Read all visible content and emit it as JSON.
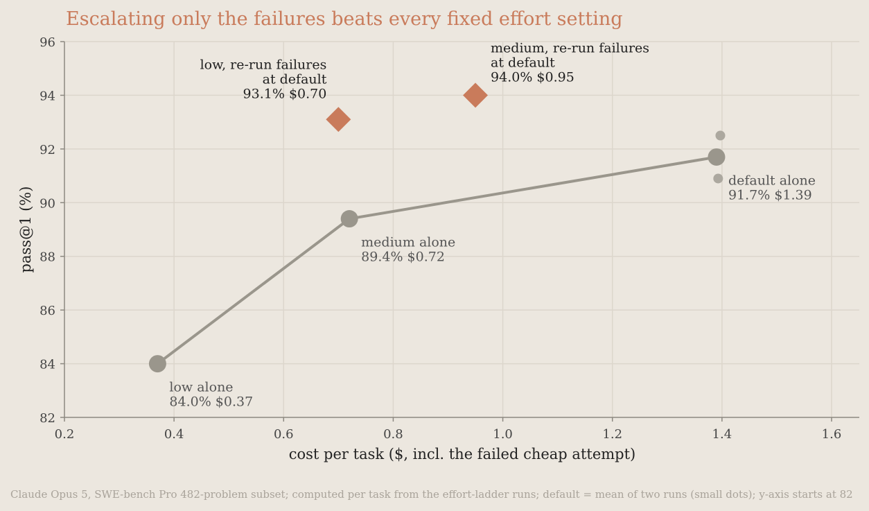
{
  "chart_data": {
    "type": "scatter",
    "title": "Escalating only the failures beats every fixed effort setting",
    "xlabel": "cost per task ($, incl. the failed cheap attempt)",
    "ylabel": "pass@1 (%)",
    "xlim": [
      0.2,
      1.65
    ],
    "ylim": [
      82,
      96
    ],
    "xticks": [
      "0.2",
      "0.4",
      "0.6",
      "0.8",
      "1.0",
      "1.2",
      "1.4",
      "1.6"
    ],
    "yticks": [
      "82",
      "84",
      "86",
      "88",
      "90",
      "92",
      "94",
      "96"
    ],
    "grid": true,
    "colors": {
      "fixed": "#9a968c",
      "escalate": "#c97b5b",
      "title": "#c97b5b"
    },
    "fixed_effort": [
      {
        "x": 0.37,
        "y": 84.0,
        "label_lines": [
          "low alone",
          "84.0%  $0.37"
        ]
      },
      {
        "x": 0.72,
        "y": 89.4,
        "label_lines": [
          "medium alone",
          "89.4%  $0.72"
        ]
      },
      {
        "x": 1.39,
        "y": 91.7,
        "label_lines": [
          "default alone",
          "91.7%  $1.39"
        ]
      }
    ],
    "default_runs": [
      {
        "x": 1.397,
        "y": 92.5
      },
      {
        "x": 1.393,
        "y": 90.9
      }
    ],
    "escalation": [
      {
        "x": 0.7,
        "y": 93.1,
        "label_lines": [
          "low, re-run failures",
          "at default",
          "93.1%  $0.70"
        ]
      },
      {
        "x": 0.95,
        "y": 94.0,
        "label_lines": [
          "medium, re-run failures",
          "at default",
          "94.0%  $0.95"
        ]
      }
    ],
    "footnote": "Claude Opus 5, SWE-bench Pro 482-problem subset; computed per task from the effort-ladder runs; default = mean of two runs (small dots); y-axis starts at 82"
  }
}
